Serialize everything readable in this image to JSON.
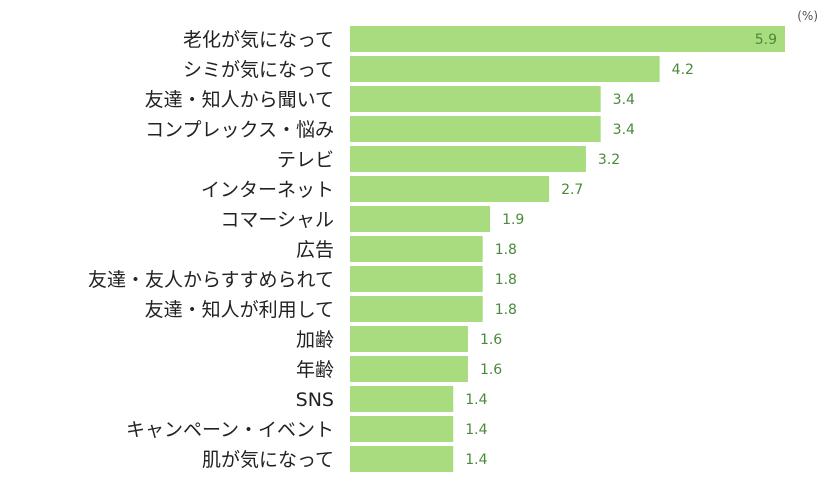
{
  "chart_data": {
    "type": "bar",
    "orientation": "horizontal",
    "unit": "(%)",
    "categories": [
      "老化が気になって",
      "シミが気になって",
      "友達・知人から聞いて",
      "コンプレックス・悩み",
      "テレビ",
      "インターネット",
      "コマーシャル",
      "広告",
      "友達・友人からすすめられて",
      "友達・知人が利用して",
      "加齢",
      "年齢",
      "SNS",
      "キャンペーン・イベント",
      "肌が気になって"
    ],
    "values": [
      5.9,
      4.2,
      3.4,
      3.4,
      3.2,
      2.7,
      1.9,
      1.8,
      1.8,
      1.8,
      1.6,
      1.6,
      1.4,
      1.4,
      1.4
    ],
    "value_labels": [
      "5.9",
      "4.2",
      "3.4",
      "3.4",
      "3.2",
      "2.7",
      "1.9",
      "1.8",
      "1.8",
      "1.8",
      "1.6",
      "1.6",
      "1.4",
      "1.4",
      "1.4"
    ],
    "xlim": [
      0,
      5.9
    ],
    "grid": false,
    "legend": "none",
    "colors": {
      "bar": "#a9dc7e",
      "value_label": "#4a8a3a",
      "category_label": "#222222"
    }
  }
}
